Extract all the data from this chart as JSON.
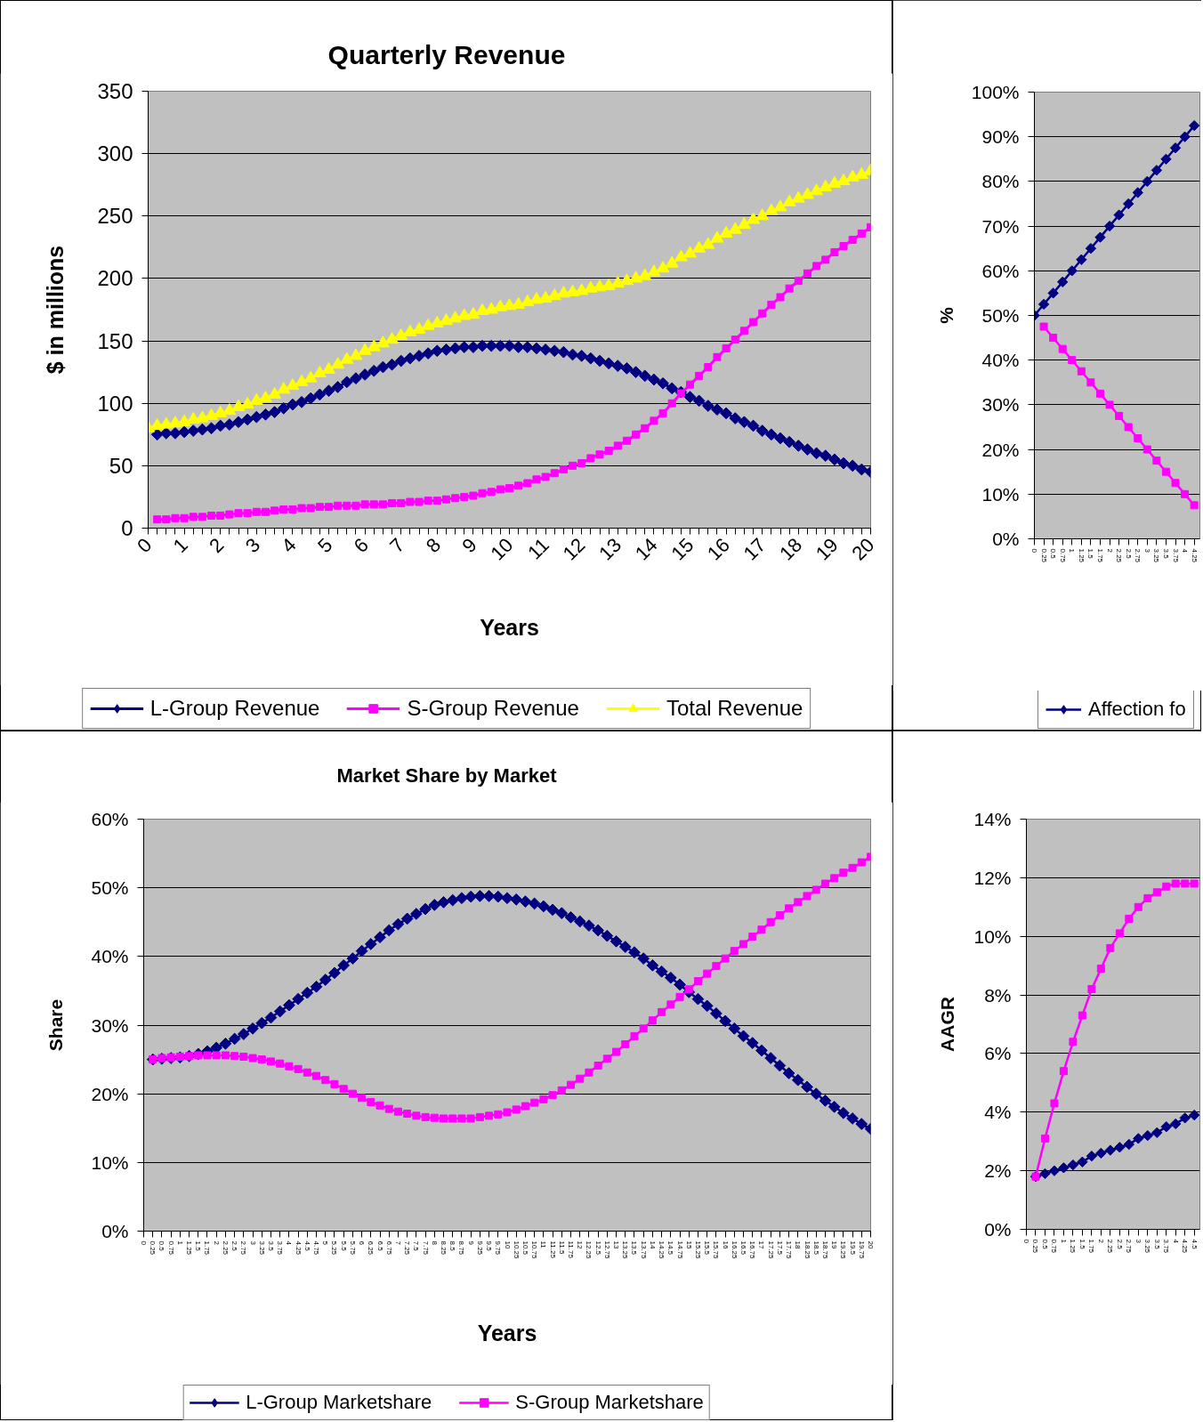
{
  "chart_data": [
    {
      "type": "line",
      "title": "Quarterly Revenue",
      "xlabel": "Years",
      "ylabel": "$ in millions",
      "x": [
        0,
        0.25,
        0.5,
        0.75,
        1,
        1.25,
        1.5,
        1.75,
        2,
        2.25,
        2.5,
        2.75,
        3,
        3.25,
        3.5,
        3.75,
        4,
        4.25,
        4.5,
        4.75,
        5,
        5.25,
        5.5,
        5.75,
        6,
        6.25,
        6.5,
        6.75,
        7,
        7.25,
        7.5,
        7.75,
        8,
        8.25,
        8.5,
        8.75,
        9,
        9.25,
        9.5,
        9.75,
        10,
        10.25,
        10.5,
        10.75,
        11,
        11.25,
        11.5,
        11.75,
        12,
        12.25,
        12.5,
        12.75,
        13,
        13.25,
        13.5,
        13.75,
        14,
        14.25,
        14.5,
        14.75,
        15,
        15.25,
        15.5,
        15.75,
        16,
        16.25,
        16.5,
        16.75,
        17,
        17.25,
        17.5,
        17.75,
        18,
        18.25,
        18.5,
        18.75,
        19,
        19.25,
        19.5,
        19.75,
        20
      ],
      "xlim": [
        0,
        20
      ],
      "xticks": [
        0,
        {
          "value": 0.25,
          "label": null
        },
        {
          "value": 0.5,
          "label": null
        },
        {
          "value": 0.75,
          "label": null
        },
        1,
        {
          "value": 1.25,
          "label": null
        },
        {
          "value": 1.5,
          "label": null
        },
        {
          "value": 1.75,
          "label": null
        },
        2,
        {
          "value": 2.25,
          "label": null
        },
        {
          "value": 2.5,
          "label": null
        },
        {
          "value": 2.75,
          "label": null
        },
        3,
        {
          "value": 3.25,
          "label": null
        },
        {
          "value": 3.5,
          "label": null
        },
        {
          "value": 3.75,
          "label": null
        },
        4,
        {
          "value": 4.25,
          "label": null
        },
        {
          "value": 4.5,
          "label": null
        },
        {
          "value": 4.75,
          "label": null
        },
        5,
        {
          "value": 5.25,
          "label": null
        },
        {
          "value": 5.5,
          "label": null
        },
        {
          "value": 5.75,
          "label": null
        },
        6,
        {
          "value": 6.25,
          "label": null
        },
        {
          "value": 6.5,
          "label": null
        },
        {
          "value": 6.75,
          "label": null
        },
        7,
        {
          "value": 7.25,
          "label": null
        },
        {
          "value": 7.5,
          "label": null
        },
        {
          "value": 7.75,
          "label": null
        },
        8,
        {
          "value": 8.25,
          "label": null
        },
        {
          "value": 8.5,
          "label": null
        },
        {
          "value": 8.75,
          "label": null
        },
        9,
        {
          "value": 9.25,
          "label": null
        },
        {
          "value": 9.5,
          "label": null
        },
        {
          "value": 9.75,
          "label": null
        },
        10,
        {
          "value": 10.25,
          "label": null
        },
        {
          "value": 10.5,
          "label": null
        },
        {
          "value": 10.75,
          "label": null
        },
        11,
        {
          "value": 11.25,
          "label": null
        },
        {
          "value": 11.5,
          "label": null
        },
        {
          "value": 11.75,
          "label": null
        },
        12,
        {
          "value": 12.25,
          "label": null
        },
        {
          "value": 12.5,
          "label": null
        },
        {
          "value": 12.75,
          "label": null
        },
        13,
        {
          "value": 13.25,
          "label": null
        },
        {
          "value": 13.5,
          "label": null
        },
        {
          "value": 13.75,
          "label": null
        },
        14,
        {
          "value": 14.25,
          "label": null
        },
        {
          "value": 14.5,
          "label": null
        },
        {
          "value": 14.75,
          "label": null
        },
        15,
        {
          "value": 15.25,
          "label": null
        },
        {
          "value": 15.5,
          "label": null
        },
        {
          "value": 15.75,
          "label": null
        },
        16,
        {
          "value": 16.25,
          "label": null
        },
        {
          "value": 16.5,
          "label": null
        },
        {
          "value": 16.75,
          "label": null
        },
        17,
        {
          "value": 17.25,
          "label": null
        },
        {
          "value": 17.5,
          "label": null
        },
        {
          "value": 17.75,
          "label": null
        },
        18,
        {
          "value": 18.25,
          "label": null
        },
        {
          "value": 18.5,
          "label": null
        },
        {
          "value": 18.75,
          "label": null
        },
        19,
        {
          "value": 19.25,
          "label": null
        },
        {
          "value": 19.5,
          "label": null
        },
        {
          "value": 19.75,
          "label": null
        },
        20
      ],
      "ylim": [
        0,
        350
      ],
      "yticks": [
        0,
        50,
        100,
        150,
        200,
        250,
        300,
        350
      ],
      "grid": "y",
      "legend": "bottom",
      "series": [
        {
          "name": "L-Group Revenue",
          "color": "#000080",
          "marker": "diamond",
          "values": [
            null,
            75,
            76,
            76,
            77,
            78,
            79,
            80,
            82,
            83,
            85,
            87,
            89,
            91,
            93,
            96,
            99,
            101,
            104,
            107,
            110,
            113,
            117,
            120,
            123,
            126,
            129,
            131,
            134,
            136,
            138,
            140,
            142,
            143,
            144,
            145,
            145,
            146,
            146,
            146,
            146,
            145,
            145,
            144,
            143,
            142,
            141,
            139,
            138,
            136,
            134,
            132,
            130,
            128,
            125,
            122,
            119,
            116,
            112,
            109,
            105,
            102,
            98,
            95,
            92,
            88,
            85,
            82,
            78,
            75,
            72,
            69,
            66,
            63,
            60,
            58,
            55,
            52,
            50,
            47,
            45
          ]
        },
        {
          "name": "S-Group Revenue",
          "color": "#ff00ff",
          "marker": "square",
          "values": [
            null,
            7,
            7,
            8,
            8,
            9,
            9,
            10,
            10,
            11,
            12,
            12,
            13,
            13,
            14,
            15,
            15,
            16,
            16,
            17,
            17,
            18,
            18,
            18,
            19,
            19,
            19,
            20,
            20,
            21,
            21,
            22,
            22,
            23,
            24,
            25,
            26,
            28,
            29,
            31,
            32,
            34,
            36,
            39,
            41,
            44,
            47,
            50,
            52,
            56,
            59,
            62,
            66,
            70,
            75,
            80,
            86,
            92,
            100,
            108,
            115,
            122,
            129,
            137,
            144,
            151,
            158,
            165,
            172,
            179,
            185,
            192,
            198,
            204,
            210,
            215,
            221,
            226,
            231,
            236,
            241
          ]
        },
        {
          "name": "Total Revenue",
          "color": "#ffff00",
          "marker": "triangle",
          "values": [
            80,
            82,
            83,
            84,
            85,
            87,
            88,
            90,
            92,
            94,
            97,
            99,
            102,
            104,
            107,
            111,
            114,
            117,
            120,
            124,
            127,
            131,
            135,
            138,
            142,
            145,
            148,
            151,
            154,
            157,
            159,
            162,
            164,
            166,
            168,
            170,
            171,
            174,
            175,
            177,
            178,
            179,
            181,
            183,
            184,
            186,
            188,
            189,
            190,
            192,
            193,
            194,
            196,
            198,
            200,
            202,
            205,
            208,
            212,
            217,
            220,
            224,
            227,
            232,
            236,
            239,
            243,
            247,
            250,
            254,
            257,
            261,
            264,
            267,
            270,
            273,
            276,
            278,
            281,
            283,
            286
          ]
        }
      ]
    },
    {
      "type": "line",
      "ylabel": "%",
      "x": [
        0,
        0.25,
        0.5,
        0.75,
        1,
        1.25,
        1.5,
        1.75,
        2,
        2.25,
        2.5,
        2.75,
        3,
        3.25,
        3.5,
        3.75,
        4,
        4.25
      ],
      "xlim": [
        0,
        4.4
      ],
      "xticks": [
        0,
        0.25,
        0.5,
        0.75,
        1,
        1.25,
        1.5,
        1.75,
        2,
        2.25,
        2.5,
        2.75,
        3,
        3.25,
        3.5,
        3.75,
        4,
        4.25
      ],
      "ylim": [
        0,
        100
      ],
      "yticks": [
        {
          "value": 0,
          "label": "0%"
        },
        {
          "value": 10,
          "label": "10%"
        },
        {
          "value": 20,
          "label": "20%"
        },
        {
          "value": 30,
          "label": "30%"
        },
        {
          "value": 40,
          "label": "40%"
        },
        {
          "value": 50,
          "label": "50%"
        },
        {
          "value": 60,
          "label": "60%"
        },
        {
          "value": 70,
          "label": "70%"
        },
        {
          "value": 80,
          "label": "80%"
        },
        {
          "value": 90,
          "label": "90%"
        },
        {
          "value": 100,
          "label": "100%"
        }
      ],
      "grid": "y",
      "legend": "bottom",
      "series": [
        {
          "name": "Affection fo",
          "color": "#000080",
          "marker": "diamond",
          "values": [
            50,
            52.5,
            55,
            57.5,
            60,
            62.5,
            65,
            67.5,
            70,
            72.5,
            75,
            77.5,
            80,
            82.5,
            85,
            87.5,
            90,
            92.5
          ]
        },
        {
          "color": "#ff00ff",
          "marker": "square",
          "values": [
            null,
            47.5,
            45,
            42.5,
            40,
            37.5,
            35,
            32.5,
            30,
            27.5,
            25,
            22.5,
            20,
            17.5,
            15,
            12.5,
            10,
            7.5
          ]
        }
      ]
    },
    {
      "type": "line",
      "title": "Market Share by Market",
      "xlabel": "Years",
      "ylabel": "Share",
      "x": [
        0.25,
        0.5,
        0.75,
        1,
        1.25,
        1.5,
        1.75,
        2,
        2.25,
        2.5,
        2.75,
        3,
        3.25,
        3.5,
        3.75,
        4,
        4.25,
        4.5,
        4.75,
        5,
        5.25,
        5.5,
        5.75,
        6,
        6.25,
        6.5,
        6.75,
        7,
        7.25,
        7.5,
        7.75,
        8,
        8.25,
        8.5,
        8.75,
        9,
        9.25,
        9.5,
        9.75,
        10,
        10.25,
        10.5,
        10.75,
        11,
        11.25,
        11.5,
        11.75,
        12,
        12.25,
        12.5,
        12.75,
        13,
        13.25,
        13.5,
        13.75,
        14,
        14.25,
        14.5,
        14.75,
        15,
        15.25,
        15.5,
        15.75,
        16,
        16.25,
        16.5,
        16.75,
        17,
        17.25,
        17.5,
        17.75,
        18,
        18.25,
        18.5,
        18.75,
        19,
        19.25,
        19.5,
        19.75,
        20
      ],
      "xlim": [
        0,
        20
      ],
      "xticks": [
        0,
        0.25,
        0.5,
        0.75,
        1,
        1.25,
        1.5,
        1.75,
        2,
        2.25,
        2.5,
        2.75,
        3,
        3.25,
        3.5,
        3.75,
        4,
        4.25,
        4.5,
        4.75,
        5,
        5.25,
        5.5,
        5.75,
        6,
        6.25,
        6.5,
        6.75,
        7,
        7.25,
        7.5,
        7.75,
        8,
        8.25,
        8.5,
        8.75,
        9,
        9.25,
        9.5,
        9.75,
        10,
        10.25,
        10.5,
        10.75,
        11,
        11.25,
        11.5,
        11.75,
        12,
        12.25,
        12.5,
        12.75,
        13,
        13.25,
        13.5,
        13.75,
        14,
        14.25,
        14.5,
        14.75,
        15,
        15.25,
        15.5,
        15.75,
        16,
        16.25,
        16.5,
        16.75,
        17,
        17.25,
        17.5,
        17.75,
        18,
        18.25,
        18.5,
        18.75,
        19,
        19.25,
        19.5,
        19.75,
        20
      ],
      "ylim": [
        0,
        60
      ],
      "yticks": [
        {
          "value": 0,
          "label": "0%"
        },
        {
          "value": 10,
          "label": "10%"
        },
        {
          "value": 20,
          "label": "20%"
        },
        {
          "value": 30,
          "label": "30%"
        },
        {
          "value": 40,
          "label": "40%"
        },
        {
          "value": 50,
          "label": "50%"
        },
        {
          "value": 60,
          "label": "60%"
        }
      ],
      "grid": "y",
      "legend": "bottom",
      "series": [
        {
          "name": "L-Group Marketshare",
          "color": "#000080",
          "marker": "diamond",
          "values": [
            25.0,
            25.1,
            25.2,
            25.3,
            25.5,
            25.8,
            26.2,
            26.7,
            27.3,
            28.0,
            28.7,
            29.5,
            30.3,
            31.1,
            32.0,
            32.9,
            33.8,
            34.7,
            35.6,
            36.6,
            37.6,
            38.7,
            39.7,
            40.8,
            41.8,
            42.8,
            43.8,
            44.7,
            45.5,
            46.2,
            46.9,
            47.5,
            47.9,
            48.2,
            48.5,
            48.7,
            48.8,
            48.8,
            48.7,
            48.5,
            48.3,
            48.0,
            47.7,
            47.3,
            46.8,
            46.3,
            45.7,
            45.1,
            44.5,
            43.8,
            43.0,
            42.2,
            41.4,
            40.6,
            39.7,
            38.7,
            37.8,
            36.9,
            35.9,
            34.8,
            33.8,
            32.8,
            31.7,
            30.6,
            29.5,
            28.4,
            27.4,
            26.3,
            25.2,
            24.1,
            23.0,
            22.0,
            21.0,
            20.0,
            19.0,
            18.1,
            17.2,
            16.4,
            15.6,
            14.9
          ]
        },
        {
          "name": "S-Group Marketshare",
          "color": "#ff00ff",
          "marker": "square",
          "values": [
            25.0,
            25.2,
            25.3,
            25.4,
            25.5,
            25.6,
            25.6,
            25.6,
            25.6,
            25.5,
            25.4,
            25.2,
            25.0,
            24.7,
            24.4,
            24.0,
            23.6,
            23.1,
            22.6,
            22.0,
            21.4,
            20.7,
            20.0,
            19.4,
            18.8,
            18.3,
            17.8,
            17.4,
            17.1,
            16.8,
            16.6,
            16.5,
            16.4,
            16.4,
            16.4,
            16.4,
            16.6,
            16.8,
            17.0,
            17.3,
            17.7,
            18.2,
            18.7,
            19.2,
            19.8,
            20.5,
            21.3,
            22.2,
            23.1,
            24.1,
            25.1,
            26.1,
            27.2,
            28.4,
            29.5,
            30.7,
            31.9,
            33.0,
            34.1,
            35.2,
            36.4,
            37.5,
            38.6,
            39.7,
            40.8,
            41.8,
            42.9,
            43.9,
            45.0,
            46.0,
            47.0,
            47.9,
            48.8,
            49.7,
            50.6,
            51.4,
            52.2,
            52.9,
            53.7,
            54.5
          ]
        }
      ]
    },
    {
      "type": "line",
      "ylabel": "AAGR",
      "x": [
        0.25,
        0.5,
        0.75,
        1,
        1.25,
        1.5,
        1.75,
        2,
        2.25,
        2.5,
        2.75,
        3,
        3.25,
        3.5,
        3.75,
        4,
        4.25,
        4.5
      ],
      "xlim": [
        0,
        4.65
      ],
      "xticks": [
        0,
        0.25,
        0.5,
        0.75,
        1,
        1.25,
        1.5,
        1.75,
        2,
        2.25,
        2.5,
        2.75,
        3,
        3.25,
        3.5,
        3.75,
        4,
        4.25,
        4.5
      ],
      "ylim": [
        0,
        14
      ],
      "yticks": [
        {
          "value": 0,
          "label": "0%"
        },
        {
          "value": 2,
          "label": "2%"
        },
        {
          "value": 4,
          "label": "4%"
        },
        {
          "value": 6,
          "label": "6%"
        },
        {
          "value": 8,
          "label": "8%"
        },
        {
          "value": 10,
          "label": "10%"
        },
        {
          "value": 12,
          "label": "12%"
        },
        {
          "value": 14,
          "label": "14%"
        }
      ],
      "grid": "y",
      "series": [
        {
          "color": "#000080",
          "marker": "diamond",
          "values": [
            1.8,
            1.9,
            2.0,
            2.1,
            2.2,
            2.3,
            2.5,
            2.6,
            2.7,
            2.8,
            2.9,
            3.1,
            3.2,
            3.3,
            3.5,
            3.6,
            3.8,
            3.9
          ]
        },
        {
          "color": "#ff00ff",
          "marker": "square",
          "values": [
            1.8,
            3.1,
            4.3,
            5.4,
            6.4,
            7.3,
            8.2,
            8.9,
            9.6,
            10.1,
            10.6,
            11.0,
            11.3,
            11.5,
            11.7,
            11.8,
            11.8,
            11.8
          ]
        }
      ]
    }
  ]
}
